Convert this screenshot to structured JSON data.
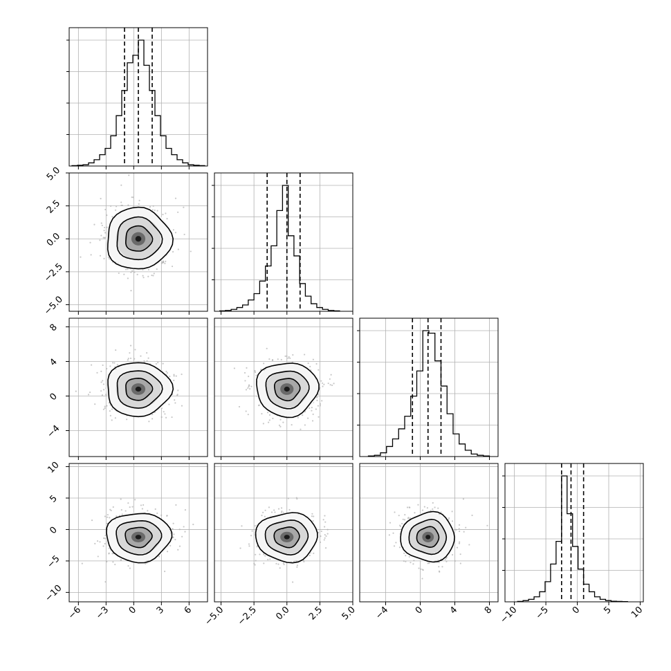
{
  "chart_data": {
    "type": "corner",
    "parameters": 4,
    "quantile_lines": "dashed lines at 16th, 50th and 84th percentiles",
    "grid": true,
    "axes": [
      {
        "range": [
          -7,
          8
        ],
        "ticks": [
          "−6",
          "−3",
          "0",
          "3",
          "6"
        ],
        "tick_values": [
          -6,
          -3,
          0,
          3,
          6
        ],
        "quantiles": [
          -1.0,
          0.5,
          2.0
        ],
        "hist": {
          "min": -6.7,
          "max": 7.7,
          "counts": [
            0.3,
            0.6,
            1,
            2.5,
            5,
            9,
            14,
            24,
            40,
            60,
            82,
            88,
            100,
            80,
            60,
            40,
            24,
            14,
            9,
            5,
            2.5,
            1,
            0.6,
            0.3
          ]
        }
      },
      {
        "range": [
          -5.5,
          5.0
        ],
        "ticks": [
          "−5.0",
          "−2.5",
          "0.0",
          "2.5",
          "5.0"
        ],
        "tick_values": [
          -5,
          -2.5,
          0,
          2.5,
          5
        ],
        "quantiles": [
          -1.5,
          0.0,
          1.0
        ],
        "hist": {
          "min": -5.1,
          "max": 4.0,
          "counts": [
            0.3,
            0.7,
            1.5,
            3,
            5,
            9,
            14,
            24,
            36,
            52,
            80,
            100,
            60,
            44,
            22,
            12,
            6,
            3,
            1.5,
            0.7,
            0.3
          ]
        }
      },
      {
        "range": [
          -7,
          9
        ],
        "ticks": [
          "−4",
          "0",
          "4",
          "8"
        ],
        "tick_values": [
          -4,
          0,
          4,
          8
        ],
        "quantiles": [
          -0.9,
          0.9,
          2.4
        ],
        "hist": {
          "min": -6.0,
          "max": 8.0,
          "counts": [
            0.5,
            1,
            3,
            8,
            14,
            22,
            32,
            48,
            68,
            100,
            98,
            76,
            56,
            34,
            18,
            10,
            5,
            2,
            1,
            0.5
          ]
        }
      },
      {
        "range": [
          -11.5,
          10.5
        ],
        "ticks": [
          "−10",
          "−5",
          "0",
          "5",
          "10"
        ],
        "tick_values": [
          -10,
          -5,
          0,
          5,
          10
        ],
        "quantiles": [
          -2.5,
          -1.0,
          1.0
        ],
        "hist": {
          "min": -9.5,
          "max": 8.0,
          "counts": [
            0.3,
            1,
            2,
            4,
            8,
            16,
            30,
            48,
            100,
            70,
            44,
            26,
            14,
            8,
            4,
            2,
            1,
            0.5,
            0.3,
            0.2
          ]
        }
      }
    ],
    "pairs": [
      {
        "row": 1,
        "col": 0,
        "center": [
          0.5,
          0.0
        ],
        "spread": [
          1.8,
          1.2
        ]
      },
      {
        "row": 2,
        "col": 0,
        "center": [
          0.5,
          0.8
        ],
        "spread": [
          1.8,
          1.6
        ]
      },
      {
        "row": 2,
        "col": 1,
        "center": [
          0.0,
          0.8
        ],
        "spread": [
          1.2,
          1.6
        ]
      },
      {
        "row": 3,
        "col": 0,
        "center": [
          0.5,
          -1.2
        ],
        "spread": [
          1.8,
          2.0
        ]
      },
      {
        "row": 3,
        "col": 1,
        "center": [
          0.0,
          -1.2
        ],
        "spread": [
          1.2,
          2.0
        ]
      },
      {
        "row": 3,
        "col": 2,
        "center": [
          0.9,
          -1.2
        ],
        "spread": [
          1.6,
          2.0
        ]
      }
    ]
  },
  "colors": {
    "contour": "#000000",
    "points": "#b0b0b0",
    "grid": "#b0b0b0",
    "axes": "#000000"
  }
}
